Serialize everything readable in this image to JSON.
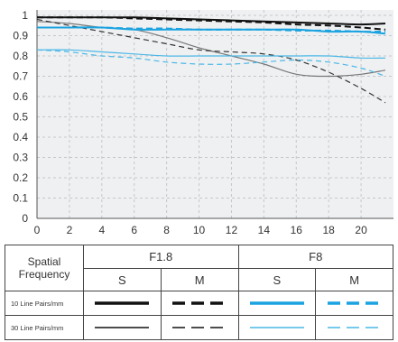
{
  "chart_data": {
    "type": "line",
    "title": "",
    "xlabel": "",
    "ylabel": "",
    "xlim": [
      0,
      22
    ],
    "ylim": [
      0,
      1
    ],
    "x_ticks": [
      "0",
      "2",
      "4",
      "6",
      "8",
      "10",
      "12",
      "14",
      "16",
      "18",
      "20"
    ],
    "y_ticks": [
      "0",
      "0.1",
      "0.2",
      "0.3",
      "0.4",
      "0.5",
      "0.6",
      "0.7",
      "0.8",
      "0.9",
      "1"
    ],
    "grid": true,
    "x": [
      0,
      2,
      4,
      6,
      8,
      10,
      12,
      14,
      16,
      18,
      20,
      21.5
    ],
    "series": [
      {
        "aperture": "F1.8",
        "frequency": "10 Line Pairs/mm",
        "direction": "S",
        "color": "#111111",
        "style": "solid",
        "weight": "thick",
        "values": [
          0.99,
          0.99,
          0.99,
          0.99,
          0.985,
          0.98,
          0.975,
          0.97,
          0.965,
          0.96,
          0.955,
          0.96
        ]
      },
      {
        "aperture": "F1.8",
        "frequency": "10 Line Pairs/mm",
        "direction": "M",
        "color": "#111111",
        "style": "dashed",
        "weight": "thick",
        "values": [
          0.99,
          0.99,
          0.99,
          0.985,
          0.98,
          0.975,
          0.97,
          0.965,
          0.955,
          0.95,
          0.94,
          0.93
        ]
      },
      {
        "aperture": "F1.8",
        "frequency": "30 Line Pairs/mm",
        "direction": "S",
        "color": "#777777",
        "style": "solid",
        "weight": "thin",
        "values": [
          0.97,
          0.96,
          0.94,
          0.93,
          0.89,
          0.84,
          0.8,
          0.76,
          0.71,
          0.7,
          0.71,
          0.73
        ]
      },
      {
        "aperture": "F1.8",
        "frequency": "30 Line Pairs/mm",
        "direction": "M",
        "color": "#333333",
        "style": "dashed",
        "weight": "thin",
        "values": [
          0.98,
          0.95,
          0.92,
          0.89,
          0.86,
          0.83,
          0.82,
          0.81,
          0.78,
          0.72,
          0.64,
          0.57
        ]
      },
      {
        "aperture": "F8",
        "frequency": "10 Line Pairs/mm",
        "direction": "S",
        "color": "#1aa3e0",
        "style": "solid",
        "weight": "thick",
        "values": [
          0.94,
          0.94,
          0.94,
          0.93,
          0.93,
          0.93,
          0.93,
          0.93,
          0.93,
          0.92,
          0.92,
          0.91
        ]
      },
      {
        "aperture": "F8",
        "frequency": "10 Line Pairs/mm",
        "direction": "M",
        "color": "#1aa3e0",
        "style": "dashed",
        "weight": "thick",
        "values": [
          0.94,
          0.94,
          0.94,
          0.935,
          0.935,
          0.93,
          0.93,
          0.93,
          0.925,
          0.925,
          0.92,
          0.92
        ]
      },
      {
        "aperture": "F8",
        "frequency": "30 Line Pairs/mm",
        "direction": "S",
        "color": "#4cb8e6",
        "style": "solid",
        "weight": "thin",
        "values": [
          0.83,
          0.83,
          0.82,
          0.81,
          0.8,
          0.8,
          0.8,
          0.8,
          0.8,
          0.8,
          0.79,
          0.79
        ]
      },
      {
        "aperture": "F8",
        "frequency": "30 Line Pairs/mm",
        "direction": "M",
        "color": "#4cb8e6",
        "style": "dashed",
        "weight": "thin",
        "values": [
          0.83,
          0.82,
          0.8,
          0.79,
          0.77,
          0.76,
          0.76,
          0.77,
          0.78,
          0.77,
          0.74,
          0.7
        ]
      }
    ]
  },
  "legend_table": {
    "header_left": "Spatial Frequency",
    "apertures": [
      "F1.8",
      "F8"
    ],
    "directions": [
      "S",
      "M",
      "S",
      "M"
    ],
    "rows": [
      {
        "label": "10 Line Pairs/mm"
      },
      {
        "label": "30 Line Pairs/mm"
      }
    ]
  },
  "colors": {
    "black": "#111111",
    "blue": "#1aa3e0",
    "plot_background": "#eef0f2",
    "grid": "#c5c8cb"
  }
}
